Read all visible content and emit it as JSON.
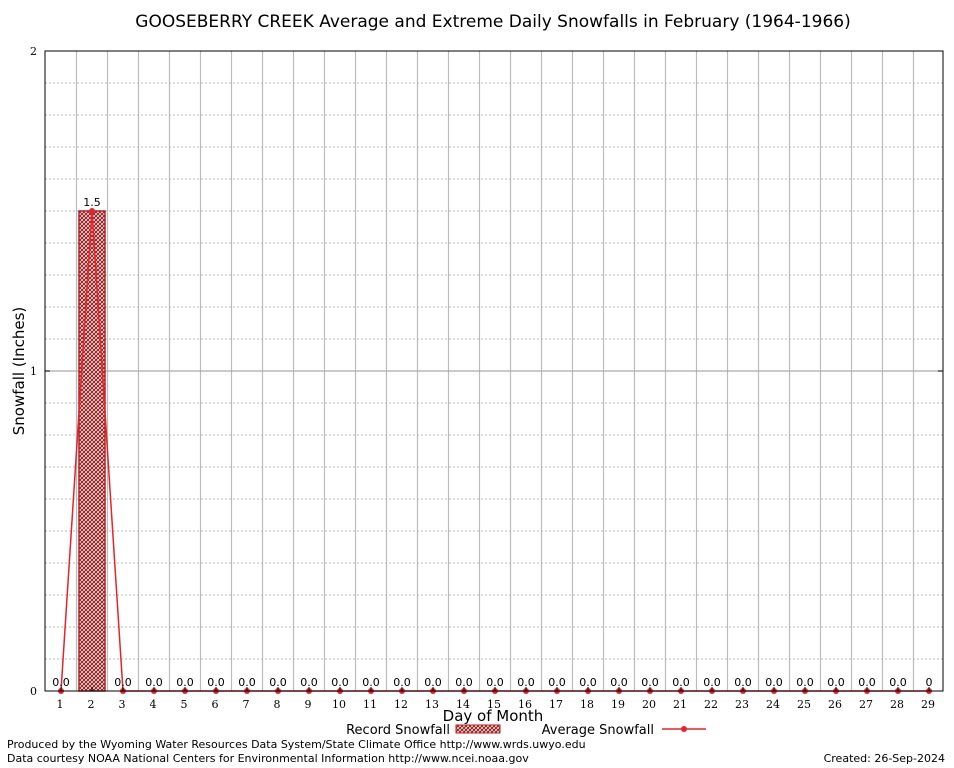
{
  "chart_data": {
    "type": "bar",
    "title": "GOOSEBERRY CREEK Average and Extreme Daily Snowfalls in February (1964-1966)",
    "xlabel": "Day of Month",
    "ylabel": "Snowfall (Inches)",
    "ylim": [
      0,
      2
    ],
    "yticks": [
      "0",
      "1",
      "2"
    ],
    "grid": true,
    "legend_position": "bottom",
    "categories": [
      "1",
      "2",
      "3",
      "4",
      "5",
      "6",
      "7",
      "8",
      "9",
      "10",
      "11",
      "12",
      "13",
      "14",
      "15",
      "16",
      "17",
      "18",
      "19",
      "20",
      "21",
      "22",
      "23",
      "24",
      "25",
      "26",
      "27",
      "28",
      "29"
    ],
    "series": [
      {
        "name": "Record Snowfall",
        "kind": "bar",
        "color": "#b22222",
        "values": [
          0,
          1.5,
          0,
          0,
          0,
          0,
          0,
          0,
          0,
          0,
          0,
          0,
          0,
          0,
          0,
          0,
          0,
          0,
          0,
          0,
          0,
          0,
          0,
          0,
          0,
          0,
          0,
          0,
          0
        ],
        "labels": [
          "0.0",
          "1.5",
          "0.0",
          "0.0",
          "0.0",
          "0.0",
          "0.0",
          "0.0",
          "0.0",
          "0.0",
          "0.0",
          "0.0",
          "0.0",
          "0.0",
          "0.0",
          "0.0",
          "0.0",
          "0.0",
          "0.0",
          "0.0",
          "0.0",
          "0.0",
          "0.0",
          "0.0",
          "0.0",
          "0.0",
          "0.0",
          "0.0",
          "0"
        ]
      },
      {
        "name": "Average Snowfall",
        "kind": "line",
        "color": "#e8222a",
        "values": [
          0,
          1.5,
          0,
          0,
          0,
          0,
          0,
          0,
          0,
          0,
          0,
          0,
          0,
          0,
          0,
          0,
          0,
          0,
          0,
          0,
          0,
          0,
          0,
          0,
          0,
          0,
          0,
          0,
          0
        ]
      }
    ]
  },
  "footer": {
    "produced_by": "Produced by the Wyoming Water Resources Data System/State Climate Office http://www.wrds.uwyo.edu",
    "data_courtesy": "Data courtesy NOAA National Centers for Environmental Information http://www.ncei.noaa.gov",
    "created": "Created: 26-Sep-2024"
  }
}
